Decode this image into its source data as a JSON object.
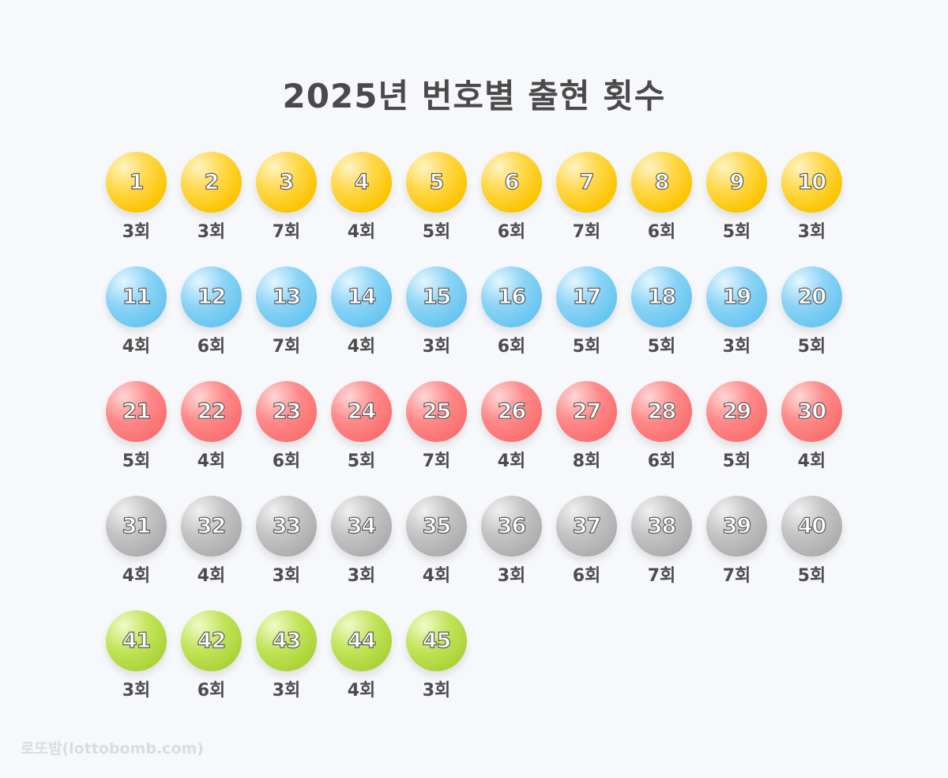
{
  "title": "2025년 번호별 출현 횟수",
  "watermark": "로또밤(lottobomb.com)",
  "colors": {
    "yellow": "#fbc500",
    "blue": "#66c5f0",
    "red": "#fa6f6f",
    "gray": "#adadad",
    "green": "#aad336"
  },
  "chart_data": {
    "type": "table",
    "title": "2025년 번호별 출현 횟수",
    "unit": "회",
    "numbers": [
      1,
      2,
      3,
      4,
      5,
      6,
      7,
      8,
      9,
      10,
      11,
      12,
      13,
      14,
      15,
      16,
      17,
      18,
      19,
      20,
      21,
      22,
      23,
      24,
      25,
      26,
      27,
      28,
      29,
      30,
      31,
      32,
      33,
      34,
      35,
      36,
      37,
      38,
      39,
      40,
      41,
      42,
      43,
      44,
      45
    ],
    "counts": [
      3,
      3,
      7,
      4,
      5,
      6,
      7,
      6,
      5,
      3,
      4,
      6,
      7,
      4,
      3,
      6,
      5,
      5,
      3,
      5,
      5,
      4,
      6,
      5,
      7,
      4,
      8,
      6,
      5,
      4,
      4,
      4,
      3,
      3,
      4,
      3,
      6,
      7,
      7,
      5,
      3,
      6,
      3,
      4,
      3
    ],
    "count_labels": [
      "3회",
      "3회",
      "7회",
      "4회",
      "5회",
      "6회",
      "7회",
      "6회",
      "5회",
      "3회",
      "4회",
      "6회",
      "7회",
      "4회",
      "3회",
      "6회",
      "5회",
      "5회",
      "3회",
      "5회",
      "5회",
      "4회",
      "6회",
      "5회",
      "7회",
      "4회",
      "8회",
      "6회",
      "5회",
      "4회",
      "4회",
      "4회",
      "3회",
      "3회",
      "4회",
      "3회",
      "6회",
      "7회",
      "7회",
      "5회",
      "3회",
      "6회",
      "3회",
      "4회",
      "3회"
    ],
    "color_groups": [
      {
        "range": [
          1,
          10
        ],
        "color": "yellow"
      },
      {
        "range": [
          11,
          20
        ],
        "color": "blue"
      },
      {
        "range": [
          21,
          30
        ],
        "color": "red"
      },
      {
        "range": [
          31,
          40
        ],
        "color": "gray"
      },
      {
        "range": [
          41,
          45
        ],
        "color": "green"
      }
    ]
  }
}
